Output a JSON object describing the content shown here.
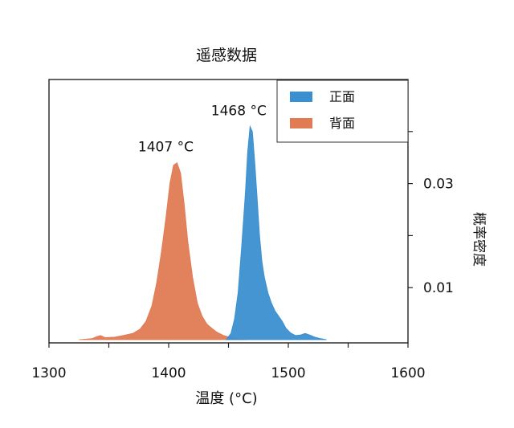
{
  "chart_data": {
    "type": "area",
    "title": "遥感数据",
    "xlabel": "温度 (°C)",
    "ylabel": "概率密度",
    "xlim": [
      1300,
      1600
    ],
    "ylim": [
      0,
      0.05
    ],
    "x_ticks": [
      1300,
      1400,
      1500,
      1600
    ],
    "y_ticks": [
      0.01,
      0.03
    ],
    "y_axis_side": "right",
    "grid": false,
    "legend": {
      "position": "top-right"
    },
    "series": [
      {
        "name": "正面",
        "color": "#3a8fcf",
        "peak_label": "1468 °C",
        "points": [
          [
            1448,
            0
          ],
          [
            1452,
            0.0012
          ],
          [
            1455,
            0.004
          ],
          [
            1458,
            0.009
          ],
          [
            1461,
            0.018
          ],
          [
            1464,
            0.028
          ],
          [
            1466,
            0.036
          ],
          [
            1468,
            0.041
          ],
          [
            1470,
            0.04
          ],
          [
            1472,
            0.034
          ],
          [
            1474,
            0.027
          ],
          [
            1476,
            0.02
          ],
          [
            1478,
            0.015
          ],
          [
            1480,
            0.012
          ],
          [
            1483,
            0.009
          ],
          [
            1486,
            0.007
          ],
          [
            1489,
            0.0055
          ],
          [
            1492,
            0.0045
          ],
          [
            1495,
            0.0035
          ],
          [
            1498,
            0.0022
          ],
          [
            1502,
            0.0013
          ],
          [
            1506,
            0.0008
          ],
          [
            1510,
            0.0009
          ],
          [
            1514,
            0.0012
          ],
          [
            1518,
            0.0009
          ],
          [
            1522,
            0.0005
          ],
          [
            1527,
            0.0002
          ],
          [
            1532,
            0
          ]
        ]
      },
      {
        "name": "背面",
        "color": "#e07b54",
        "peak_label": "1407 °C",
        "points": [
          [
            1325,
            0
          ],
          [
            1336,
            0.0002
          ],
          [
            1340,
            0.0006
          ],
          [
            1343,
            0.0008
          ],
          [
            1347,
            0.0004
          ],
          [
            1355,
            0.0005
          ],
          [
            1362,
            0.0008
          ],
          [
            1370,
            0.0012
          ],
          [
            1376,
            0.002
          ],
          [
            1381,
            0.0035
          ],
          [
            1386,
            0.0065
          ],
          [
            1390,
            0.011
          ],
          [
            1394,
            0.017
          ],
          [
            1398,
            0.024
          ],
          [
            1401,
            0.03
          ],
          [
            1404,
            0.0335
          ],
          [
            1407,
            0.034
          ],
          [
            1410,
            0.032
          ],
          [
            1413,
            0.026
          ],
          [
            1416,
            0.019
          ],
          [
            1420,
            0.012
          ],
          [
            1424,
            0.007
          ],
          [
            1428,
            0.0045
          ],
          [
            1432,
            0.003
          ],
          [
            1436,
            0.0022
          ],
          [
            1440,
            0.0015
          ],
          [
            1446,
            0.0008
          ],
          [
            1454,
            0.0003
          ],
          [
            1465,
            0
          ]
        ]
      }
    ]
  }
}
